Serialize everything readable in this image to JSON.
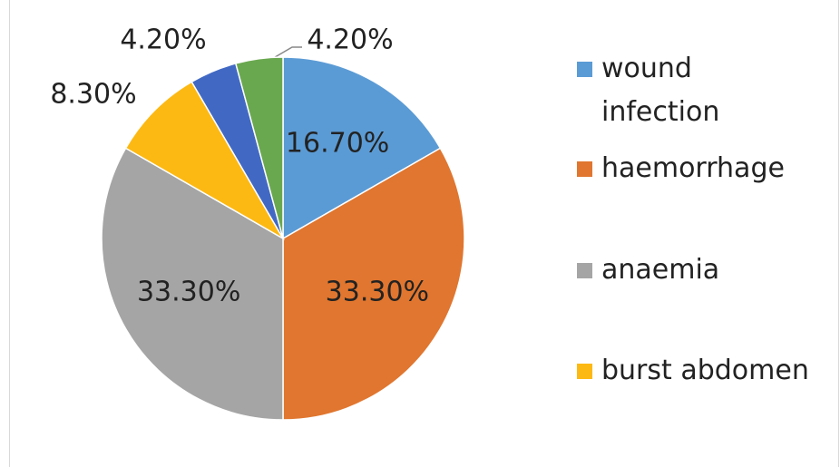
{
  "chart_data": {
    "type": "pie",
    "categories": [
      "wound infection",
      "haemorrhage",
      "anaemia",
      "burst abdomen",
      null,
      null
    ],
    "values": [
      16.7,
      33.3,
      33.3,
      8.3,
      4.2,
      4.2
    ],
    "value_labels": [
      "16.70%",
      "33.30%",
      "33.30%",
      "8.30%",
      "4.20%",
      "4.20%"
    ],
    "colors": [
      "#5b9bd5",
      "#e0762f",
      "#a5a5a5",
      "#fdb913",
      "#4169c4",
      "#6aa84f"
    ],
    "legend": "right"
  }
}
